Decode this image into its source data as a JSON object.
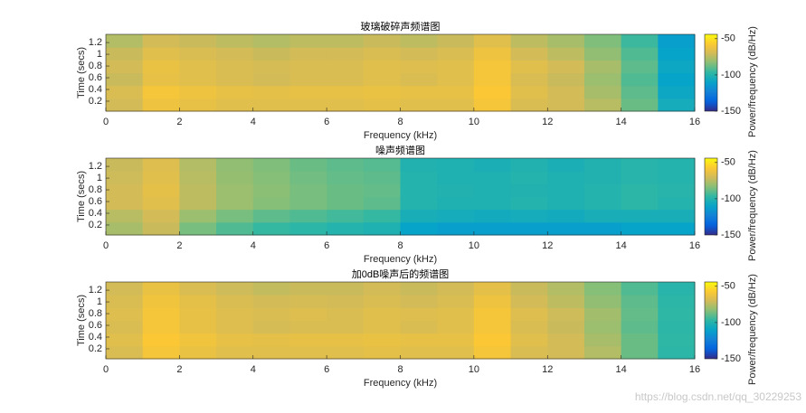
{
  "chart_data": [
    {
      "type": "heatmap",
      "title": "玻璃破碎声频谱图",
      "x_label": "Frequency (kHz)",
      "y_label": "Time (secs)",
      "colorbar_label": "Power/frequency (dB/Hz)",
      "colormap": "parula",
      "x": [
        0.5,
        1.5,
        2.5,
        3.5,
        4.5,
        5.5,
        6.5,
        7.5,
        8.5,
        9.5,
        10.5,
        11.5,
        12.5,
        13.5,
        14.5,
        15.5
      ],
      "y": [
        0.139,
        0.357,
        0.576,
        0.794,
        1.012,
        1.231
      ],
      "z": [
        [
          -70,
          -62,
          -64,
          -66,
          -66,
          -66,
          -66,
          -65,
          -66,
          -66,
          -60,
          -68,
          -70,
          -75,
          -88,
          -105
        ],
        [
          -68,
          -60,
          -62,
          -64,
          -65,
          -64,
          -64,
          -63,
          -64,
          -64,
          -58,
          -66,
          -70,
          -78,
          -90,
          -108
        ],
        [
          -72,
          -64,
          -66,
          -68,
          -70,
          -68,
          -68,
          -66,
          -68,
          -66,
          -60,
          -68,
          -72,
          -80,
          -92,
          -110
        ],
        [
          -70,
          -63,
          -66,
          -68,
          -69,
          -68,
          -68,
          -66,
          -67,
          -66,
          -60,
          -66,
          -70,
          -78,
          -90,
          -108
        ],
        [
          -72,
          -66,
          -68,
          -70,
          -72,
          -70,
          -70,
          -68,
          -70,
          -68,
          -62,
          -70,
          -74,
          -82,
          -92,
          -110
        ],
        [
          -76,
          -70,
          -72,
          -74,
          -76,
          -74,
          -74,
          -72,
          -74,
          -72,
          -66,
          -74,
          -78,
          -85,
          -95,
          -112
        ]
      ],
      "xlim": [
        0,
        16
      ],
      "xticks": [
        0,
        2,
        4,
        6,
        8,
        10,
        12,
        14,
        16
      ],
      "ylim": [
        0.03,
        1.34
      ],
      "yticks": [
        0.2,
        0.4,
        0.6,
        0.8,
        1,
        1.2
      ],
      "clim": [
        -150,
        -44
      ],
      "cticks": [
        -150,
        -100,
        -50
      ]
    },
    {
      "type": "heatmap",
      "title": "噪声频谱图",
      "x_label": "Frequency (kHz)",
      "y_label": "Time (secs)",
      "colorbar_label": "Power/frequency (dB/Hz)",
      "colormap": "parula",
      "x": [
        0.5,
        1.5,
        2.5,
        3.5,
        4.5,
        5.5,
        6.5,
        7.5,
        8.5,
        9.5,
        10.5,
        11.5,
        12.5,
        13.5,
        14.5,
        15.5
      ],
      "y": [
        0.139,
        0.357,
        0.576,
        0.794,
        1.012,
        1.231
      ],
      "z": [
        [
          -78,
          -72,
          -86,
          -92,
          -96,
          -98,
          -100,
          -102,
          -110,
          -112,
          -112,
          -112,
          -112,
          -112,
          -110,
          -110
        ],
        [
          -75,
          -70,
          -80,
          -86,
          -90,
          -92,
          -94,
          -96,
          -104,
          -105,
          -106,
          -105,
          -106,
          -104,
          -104,
          -104
        ],
        [
          -70,
          -66,
          -74,
          -80,
          -84,
          -86,
          -88,
          -90,
          -100,
          -102,
          -102,
          -100,
          -102,
          -100,
          -98,
          -100
        ],
        [
          -70,
          -65,
          -74,
          -80,
          -83,
          -86,
          -88,
          -89,
          -100,
          -101,
          -102,
          -101,
          -102,
          -100,
          -98,
          -99
        ],
        [
          -71,
          -66,
          -75,
          -81,
          -84,
          -87,
          -89,
          -90,
          -100,
          -102,
          -102,
          -100,
          -102,
          -101,
          -99,
          -100
        ],
        [
          -72,
          -67,
          -76,
          -82,
          -85,
          -88,
          -90,
          -91,
          -101,
          -102,
          -103,
          -101,
          -103,
          -101,
          -99,
          -100
        ]
      ],
      "xlim": [
        0,
        16
      ],
      "xticks": [
        0,
        2,
        4,
        6,
        8,
        10,
        12,
        14,
        16
      ],
      "ylim": [
        0.03,
        1.34
      ],
      "yticks": [
        0.2,
        0.4,
        0.6,
        0.8,
        1,
        1.2
      ],
      "clim": [
        -150,
        -44
      ],
      "cticks": [
        -150,
        -100,
        -50
      ]
    },
    {
      "type": "heatmap",
      "title": "加0dB噪声后的频谱图",
      "x_label": "Frequency (kHz)",
      "y_label": "Time (secs)",
      "colorbar_label": "Power/frequency (dB/Hz)",
      "colormap": "parula",
      "x": [
        0.5,
        1.5,
        2.5,
        3.5,
        4.5,
        5.5,
        6.5,
        7.5,
        8.5,
        9.5,
        10.5,
        11.5,
        12.5,
        13.5,
        14.5,
        15.5
      ],
      "y": [
        0.139,
        0.357,
        0.576,
        0.794,
        1.012,
        1.231
      ],
      "z": [
        [
          -68,
          -60,
          -63,
          -66,
          -66,
          -66,
          -66,
          -65,
          -66,
          -66,
          -60,
          -68,
          -70,
          -76,
          -88,
          -98
        ],
        [
          -66,
          -58,
          -61,
          -64,
          -65,
          -64,
          -64,
          -63,
          -64,
          -64,
          -58,
          -66,
          -70,
          -78,
          -88,
          -97
        ],
        [
          -68,
          -60,
          -64,
          -67,
          -69,
          -68,
          -68,
          -66,
          -68,
          -66,
          -60,
          -68,
          -72,
          -80,
          -90,
          -98
        ],
        [
          -67,
          -60,
          -64,
          -67,
          -68,
          -67,
          -68,
          -66,
          -67,
          -66,
          -60,
          -67,
          -71,
          -79,
          -89,
          -97
        ],
        [
          -68,
          -61,
          -65,
          -68,
          -70,
          -69,
          -70,
          -68,
          -70,
          -68,
          -62,
          -70,
          -74,
          -82,
          -90,
          -98
        ],
        [
          -70,
          -63,
          -68,
          -71,
          -73,
          -72,
          -72,
          -70,
          -72,
          -70,
          -65,
          -72,
          -76,
          -84,
          -92,
          -99
        ]
      ],
      "xlim": [
        0,
        16
      ],
      "xticks": [
        0,
        2,
        4,
        6,
        8,
        10,
        12,
        14,
        16
      ],
      "ylim": [
        0.03,
        1.34
      ],
      "yticks": [
        0.2,
        0.4,
        0.6,
        0.8,
        1,
        1.2
      ],
      "clim": [
        -150,
        -44
      ],
      "cticks": [
        -150,
        -100,
        -50
      ]
    }
  ],
  "watermark": "https://blog.csdn.net/qq_30229253"
}
